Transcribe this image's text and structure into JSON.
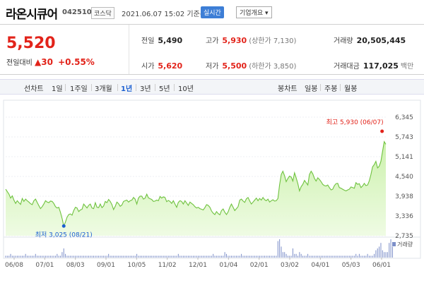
{
  "header": {
    "name": "라온시큐어",
    "code": "042510",
    "market": "코스닥",
    "date": "2021.06.07 15:02 기준(장중)",
    "realtime": "실시간",
    "company_info": "기업개요 ▾"
  },
  "quote": {
    "price": "5,520",
    "change_label": "전일대비",
    "change_value": "▲30",
    "change_pct": "+0.55%",
    "prev_close": {
      "label": "전일",
      "value": "5,490"
    },
    "open": {
      "label": "시가",
      "value": "5,620"
    },
    "high": {
      "label": "고가",
      "value": "5,930",
      "sub": "(상한가 7,130)"
    },
    "low": {
      "label": "저가",
      "value": "5,500",
      "sub": "(하한가 3,850)"
    },
    "volume": {
      "label": "거래량",
      "value": "20,505,445"
    },
    "amount": {
      "label": "거래대금",
      "value": "117,025",
      "unit": "백만"
    }
  },
  "period_bar": {
    "line_label": "선차트",
    "periods": [
      "1일",
      "1주일",
      "3개월",
      "1년",
      "3년",
      "5년",
      "10년"
    ],
    "active_period": "1년",
    "candle_label": "봉차트",
    "candles": [
      "일봉",
      "주봉",
      "월봉"
    ]
  },
  "chart_data": {
    "type": "area",
    "x_tick_labels": [
      "06/08",
      "07/01",
      "08/03",
      "09/01",
      "10/05",
      "11/02",
      "12/01",
      "01/04",
      "02/01",
      "03/02",
      "04/01",
      "05/03",
      "06/01"
    ],
    "y_tick_labels": [
      "6,345",
      "5,743",
      "5,141",
      "4,540",
      "3,938",
      "3,336",
      "2,735"
    ],
    "ylim": [
      2735,
      6345
    ],
    "high_annotation": "최고 5,930 (06/07)",
    "low_annotation": "최저 3,025 (08/21)",
    "volume_label": "거래량",
    "values": [
      4150,
      4080,
      4000,
      3880,
      3950,
      3820,
      3720,
      3800,
      3740,
      3690,
      3870,
      3780,
      3850,
      3800,
      3760,
      3710,
      3680,
      3800,
      3850,
      3750,
      3650,
      3560,
      3620,
      3700,
      3800,
      3760,
      3740,
      3790,
      3780,
      3720,
      3620,
      3580,
      3600,
      3450,
      3260,
      3030,
      3150,
      3300,
      3380,
      3400,
      3360,
      3500,
      3600,
      3580,
      3470,
      3520,
      3540,
      3700,
      3640,
      3580,
      3660,
      3700,
      3580,
      3560,
      3740,
      3600,
      3590,
      3700,
      3590,
      3640,
      3780,
      3740,
      3840,
      3780,
      3680,
      3530,
      3630,
      3760,
      3710,
      3630,
      3670,
      3780,
      3800,
      3820,
      3760,
      3800,
      3820,
      3900,
      3850,
      3700,
      3880,
      3940,
      3940,
      3850,
      3880,
      4000,
      3890,
      3860,
      3840,
      3780,
      3790,
      3820,
      3800,
      3930,
      3880,
      3920,
      3900,
      3770,
      3810,
      3780,
      3720,
      3800,
      3700,
      3600,
      3750,
      3800,
      3780,
      3700,
      3800,
      3730,
      3660,
      3760,
      3720,
      3680,
      3620,
      3580,
      3600,
      3560,
      3540,
      3520,
      3590,
      3680,
      3660,
      3600,
      3490,
      3420,
      3380,
      3470,
      3410,
      3370,
      3500,
      3550,
      3450,
      3380,
      3460,
      3600,
      3700,
      3600,
      3500,
      3560,
      3620,
      3820,
      3850,
      3790,
      3750,
      3860,
      3900,
      3790,
      3700,
      3760,
      3820,
      3880,
      3800,
      3870,
      3820,
      3900,
      3830,
      3800,
      3850,
      3760,
      3800,
      3830,
      3790,
      3800,
      3870,
      4280,
      4600,
      4700,
      4560,
      4380,
      4480,
      4550,
      4520,
      4400,
      4650,
      4500,
      4320,
      4100,
      4230,
      4300,
      4420,
      4350,
      4280,
      4600,
      4700,
      4620,
      4480,
      4400,
      4500,
      4450,
      4380,
      4300,
      4260,
      4250,
      4280,
      4200,
      4130,
      4150,
      4260,
      4320,
      4330,
      4200,
      4180,
      4150,
      4120,
      4100,
      4130,
      4150,
      4220,
      4200,
      4180,
      4350,
      4300,
      4320,
      4200,
      4250,
      4330,
      4260,
      4280,
      4400,
      4600,
      4830,
      4900,
      5000,
      4800,
      4850,
      5000,
      5300,
      5600,
      5520
    ],
    "volume_values": [
      1,
      1,
      1,
      2,
      1,
      1,
      1,
      1,
      1,
      1,
      1,
      1,
      2,
      1,
      1,
      1,
      1,
      1,
      2,
      1,
      1,
      1,
      1,
      1,
      1,
      1,
      1,
      1,
      1,
      1,
      1,
      2,
      1,
      1,
      3,
      5,
      2,
      1,
      1,
      1,
      1,
      1,
      1,
      1,
      1,
      1,
      1,
      1,
      1,
      1,
      1,
      1,
      1,
      1,
      1,
      1,
      1,
      1,
      1,
      1,
      1,
      1,
      2,
      1,
      1,
      1,
      1,
      1,
      1,
      1,
      1,
      1,
      1,
      1,
      1,
      1,
      1,
      1,
      1,
      2,
      1,
      1,
      1,
      1,
      1,
      1,
      1,
      1,
      1,
      1,
      1,
      1,
      1,
      1,
      1,
      1,
      1,
      1,
      1,
      1,
      1,
      1,
      1,
      1,
      2,
      1,
      1,
      1,
      1,
      1,
      1,
      1,
      1,
      1,
      1,
      1,
      1,
      1,
      1,
      1,
      1,
      1,
      1,
      1,
      1,
      2,
      1,
      1,
      1,
      1,
      1,
      1,
      3,
      2,
      1,
      1,
      1,
      1,
      1,
      1,
      1,
      1,
      2,
      1,
      1,
      1,
      1,
      1,
      1,
      1,
      1,
      1,
      1,
      1,
      1,
      1,
      1,
      1,
      1,
      1,
      1,
      1,
      1,
      1,
      9,
      10,
      6,
      3,
      3,
      2,
      1,
      1,
      1,
      5,
      2,
      2,
      1,
      3,
      2,
      1,
      1,
      1,
      2,
      1,
      1,
      1,
      1,
      1,
      1,
      1,
      1,
      1,
      1,
      1,
      1,
      1,
      1,
      1,
      1,
      1,
      1,
      1,
      1,
      1,
      1,
      1,
      1,
      1,
      1,
      1,
      1,
      2,
      1,
      2,
      1,
      1,
      1,
      1,
      2,
      1,
      1,
      1,
      2,
      4,
      5,
      6,
      8,
      4,
      3,
      3,
      3,
      8,
      10,
      6
    ]
  }
}
